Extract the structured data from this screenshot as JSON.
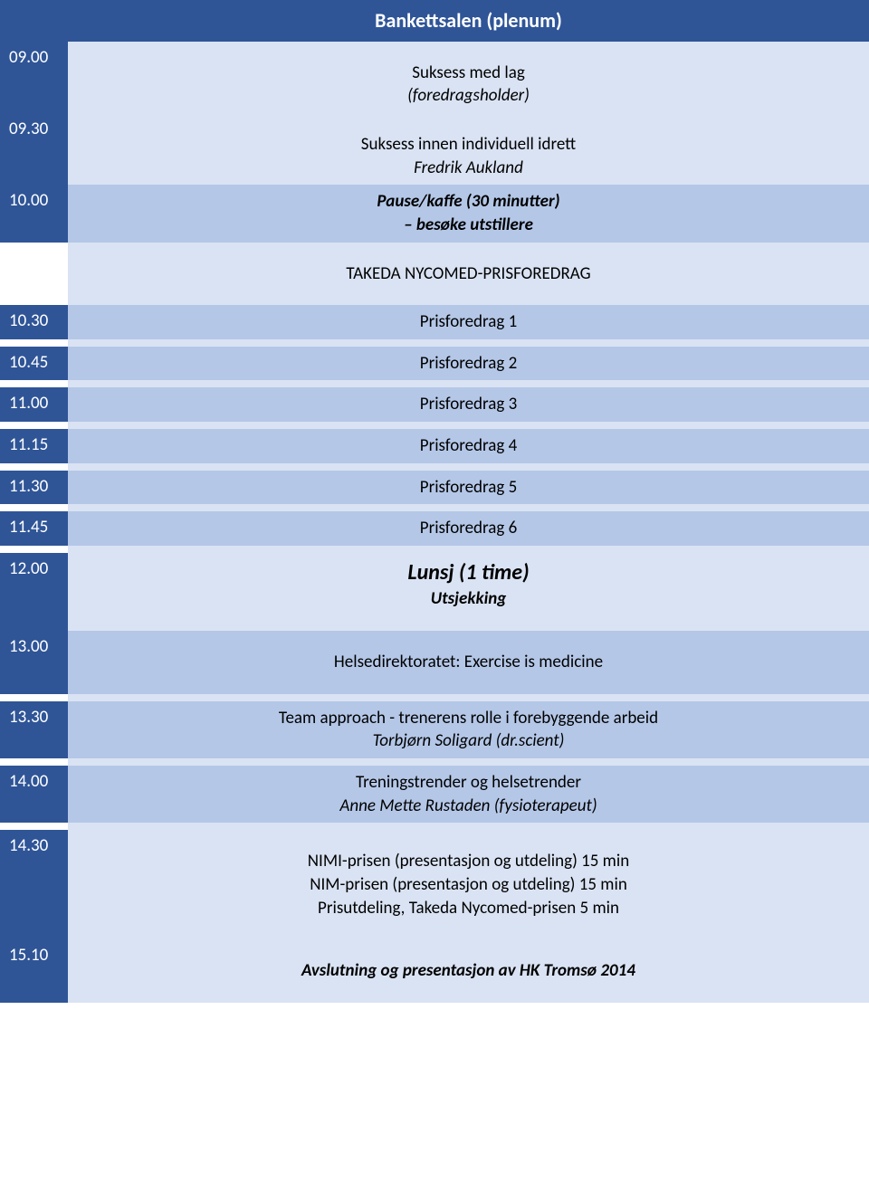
{
  "colors": {
    "darkBlue": "#2f5597",
    "midBlue": "#b4c7e7",
    "lightBlue": "#dae3f3",
    "white": "#ffffff",
    "headerText": "#1f3864"
  },
  "header": {
    "title": "Bankettsalen (plenum)"
  },
  "rows": [
    {
      "time": "09.00",
      "lines": [
        {
          "text": "Suksess med lag",
          "italic": false
        },
        {
          "text": "(foredragsholder)",
          "italic": true
        }
      ],
      "timeBg": "darkBlue",
      "contentBg": "lightBlue",
      "timeColor": "white",
      "topPad": true
    },
    {
      "time": "09.30",
      "lines": [
        {
          "text": "Suksess innen individuell idrett",
          "italic": false
        },
        {
          "text": "Fredrik Aukland",
          "italic": true
        }
      ],
      "timeBg": "darkBlue",
      "contentBg": "lightBlue",
      "timeColor": "white",
      "topPad": true
    },
    {
      "time": "10.00",
      "lines": [
        {
          "text": "Pause/kaffe (30 minutter)",
          "italic": true,
          "bold": true
        },
        {
          "text": "– besøke utstillere",
          "italic": true,
          "bold": true
        }
      ],
      "timeBg": "darkBlue",
      "contentBg": "midBlue",
      "timeColor": "white"
    },
    {
      "time": "",
      "lines": [
        {
          "text": "TAKEDA NYCOMED-PRISFOREDRAG",
          "italic": false
        }
      ],
      "timeBg": "white",
      "contentBg": "lightBlue",
      "timeColor": "white",
      "topPad": true,
      "botPad": true
    },
    {
      "time": "10.30",
      "lines": [
        {
          "text": "Prisforedrag 1",
          "italic": false
        }
      ],
      "timeBg": "darkBlue",
      "contentBg": "midBlue",
      "timeColor": "white"
    },
    {
      "time": "10.45",
      "lines": [
        {
          "text": "Prisforedrag 2",
          "italic": false
        }
      ],
      "timeBg": "darkBlue",
      "contentBg": "midBlue",
      "timeColor": "white",
      "sepBefore": true
    },
    {
      "time": "11.00",
      "lines": [
        {
          "text": "Prisforedrag 3",
          "italic": false
        }
      ],
      "timeBg": "darkBlue",
      "contentBg": "midBlue",
      "timeColor": "white",
      "sepBefore": true
    },
    {
      "time": "11.15",
      "lines": [
        {
          "text": "Prisforedrag 4",
          "italic": false
        }
      ],
      "timeBg": "darkBlue",
      "contentBg": "midBlue",
      "timeColor": "white",
      "sepBefore": true
    },
    {
      "time": "11.30",
      "lines": [
        {
          "text": "Prisforedrag 5",
          "italic": false
        }
      ],
      "timeBg": "darkBlue",
      "contentBg": "midBlue",
      "timeColor": "white",
      "sepBefore": true
    },
    {
      "time": "11.45",
      "lines": [
        {
          "text": "Prisforedrag 6",
          "italic": false
        }
      ],
      "timeBg": "darkBlue",
      "contentBg": "midBlue",
      "timeColor": "white",
      "sepBefore": true
    },
    {
      "time": "12.00",
      "lines": [
        {
          "text": "Lunsj (1 time)",
          "italic": true,
          "bold": true,
          "large": true
        },
        {
          "text": "Utsjekking",
          "italic": true,
          "bold": true
        }
      ],
      "timeBg": "darkBlue",
      "contentBg": "lightBlue",
      "timeColor": "white",
      "sepBefore": true,
      "botPad": true
    },
    {
      "time": "13.00",
      "lines": [
        {
          "text": "Helsedirektoratet: Exercise is medicine",
          "italic": false
        }
      ],
      "timeBg": "darkBlue",
      "contentBg": "midBlue",
      "timeColor": "white",
      "topPad": true,
      "botPad": true
    },
    {
      "time": "13.30",
      "lines": [
        {
          "text": "Team approach - trenerens rolle i forebyggende arbeid",
          "italic": false
        },
        {
          "text": "Torbjørn Soligard (dr.scient)",
          "italic": true
        }
      ],
      "timeBg": "darkBlue",
      "contentBg": "midBlue",
      "timeColor": "white",
      "sepBefore": true
    },
    {
      "time": "14.00",
      "lines": [
        {
          "text": "Treningstrender og helsetrender",
          "italic": false
        },
        {
          "text": "Anne Mette Rustaden (fysioterapeut)",
          "italic": true
        }
      ],
      "timeBg": "darkBlue",
      "contentBg": "midBlue",
      "timeColor": "white",
      "sepBefore": true
    },
    {
      "time": "14.30",
      "lines": [
        {
          "text": "NIMI-prisen (presentasjon og utdeling) 15 min",
          "italic": false
        },
        {
          "text": "NIM-prisen (presentasjon og utdeling) 15 min",
          "italic": false
        },
        {
          "text": "Prisutdeling, Takeda Nycomed-prisen 5 min",
          "italic": false
        }
      ],
      "timeBg": "darkBlue",
      "contentBg": "lightBlue",
      "timeColor": "white",
      "sepBefore": true,
      "topPad": true,
      "botPad": true
    },
    {
      "time": "15.10",
      "lines": [
        {
          "text": "Avslutning og presentasjon av HK Tromsø 2014",
          "italic": true,
          "bold": true
        }
      ],
      "timeBg": "darkBlue",
      "contentBg": "lightBlue",
      "timeColor": "white",
      "topPad": true,
      "botPad": true
    }
  ]
}
